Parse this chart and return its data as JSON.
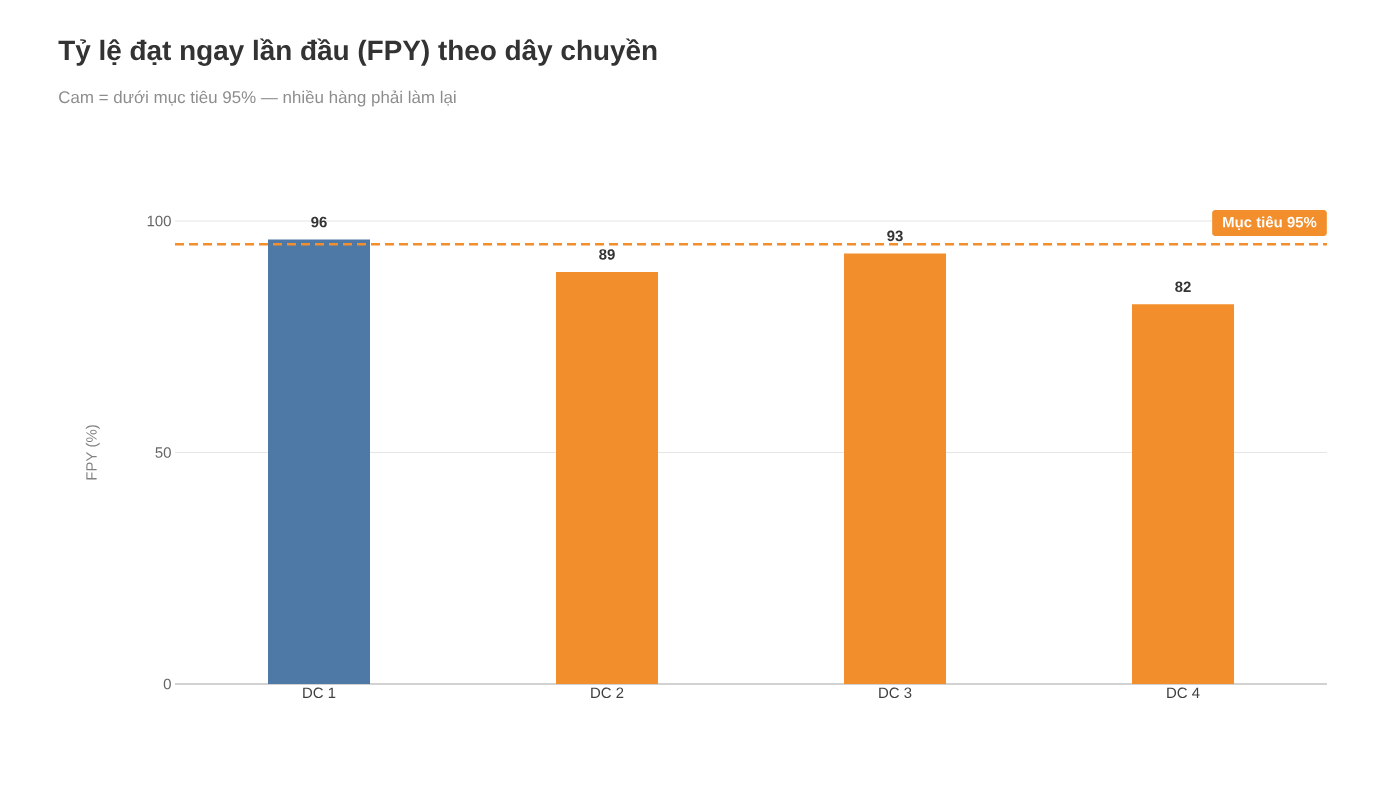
{
  "chart_data": {
    "type": "bar",
    "title": "Tỷ lệ đạt ngay lần đầu (FPY) theo dây chuyền",
    "subtitle": "Cam = dưới mục tiêu 95% — nhiều hàng phải làm lại",
    "ylabel": "FPY (%)",
    "categories": [
      "DC 1",
      "DC 2",
      "DC 3",
      "DC 4"
    ],
    "values": [
      96,
      89,
      93,
      82
    ],
    "colors": [
      "#4e79a7",
      "#f28e2b",
      "#f28e2b",
      "#f28e2b"
    ],
    "ylim": [
      0,
      100
    ],
    "yticks": [
      0,
      50,
      100
    ],
    "grid": "y",
    "data_labels": true,
    "ref_lines": [
      {
        "axis": "y",
        "value": 95,
        "label": "Mục tiêu 95%",
        "color": "#f28e2b",
        "line_style": "dashed"
      }
    ]
  }
}
